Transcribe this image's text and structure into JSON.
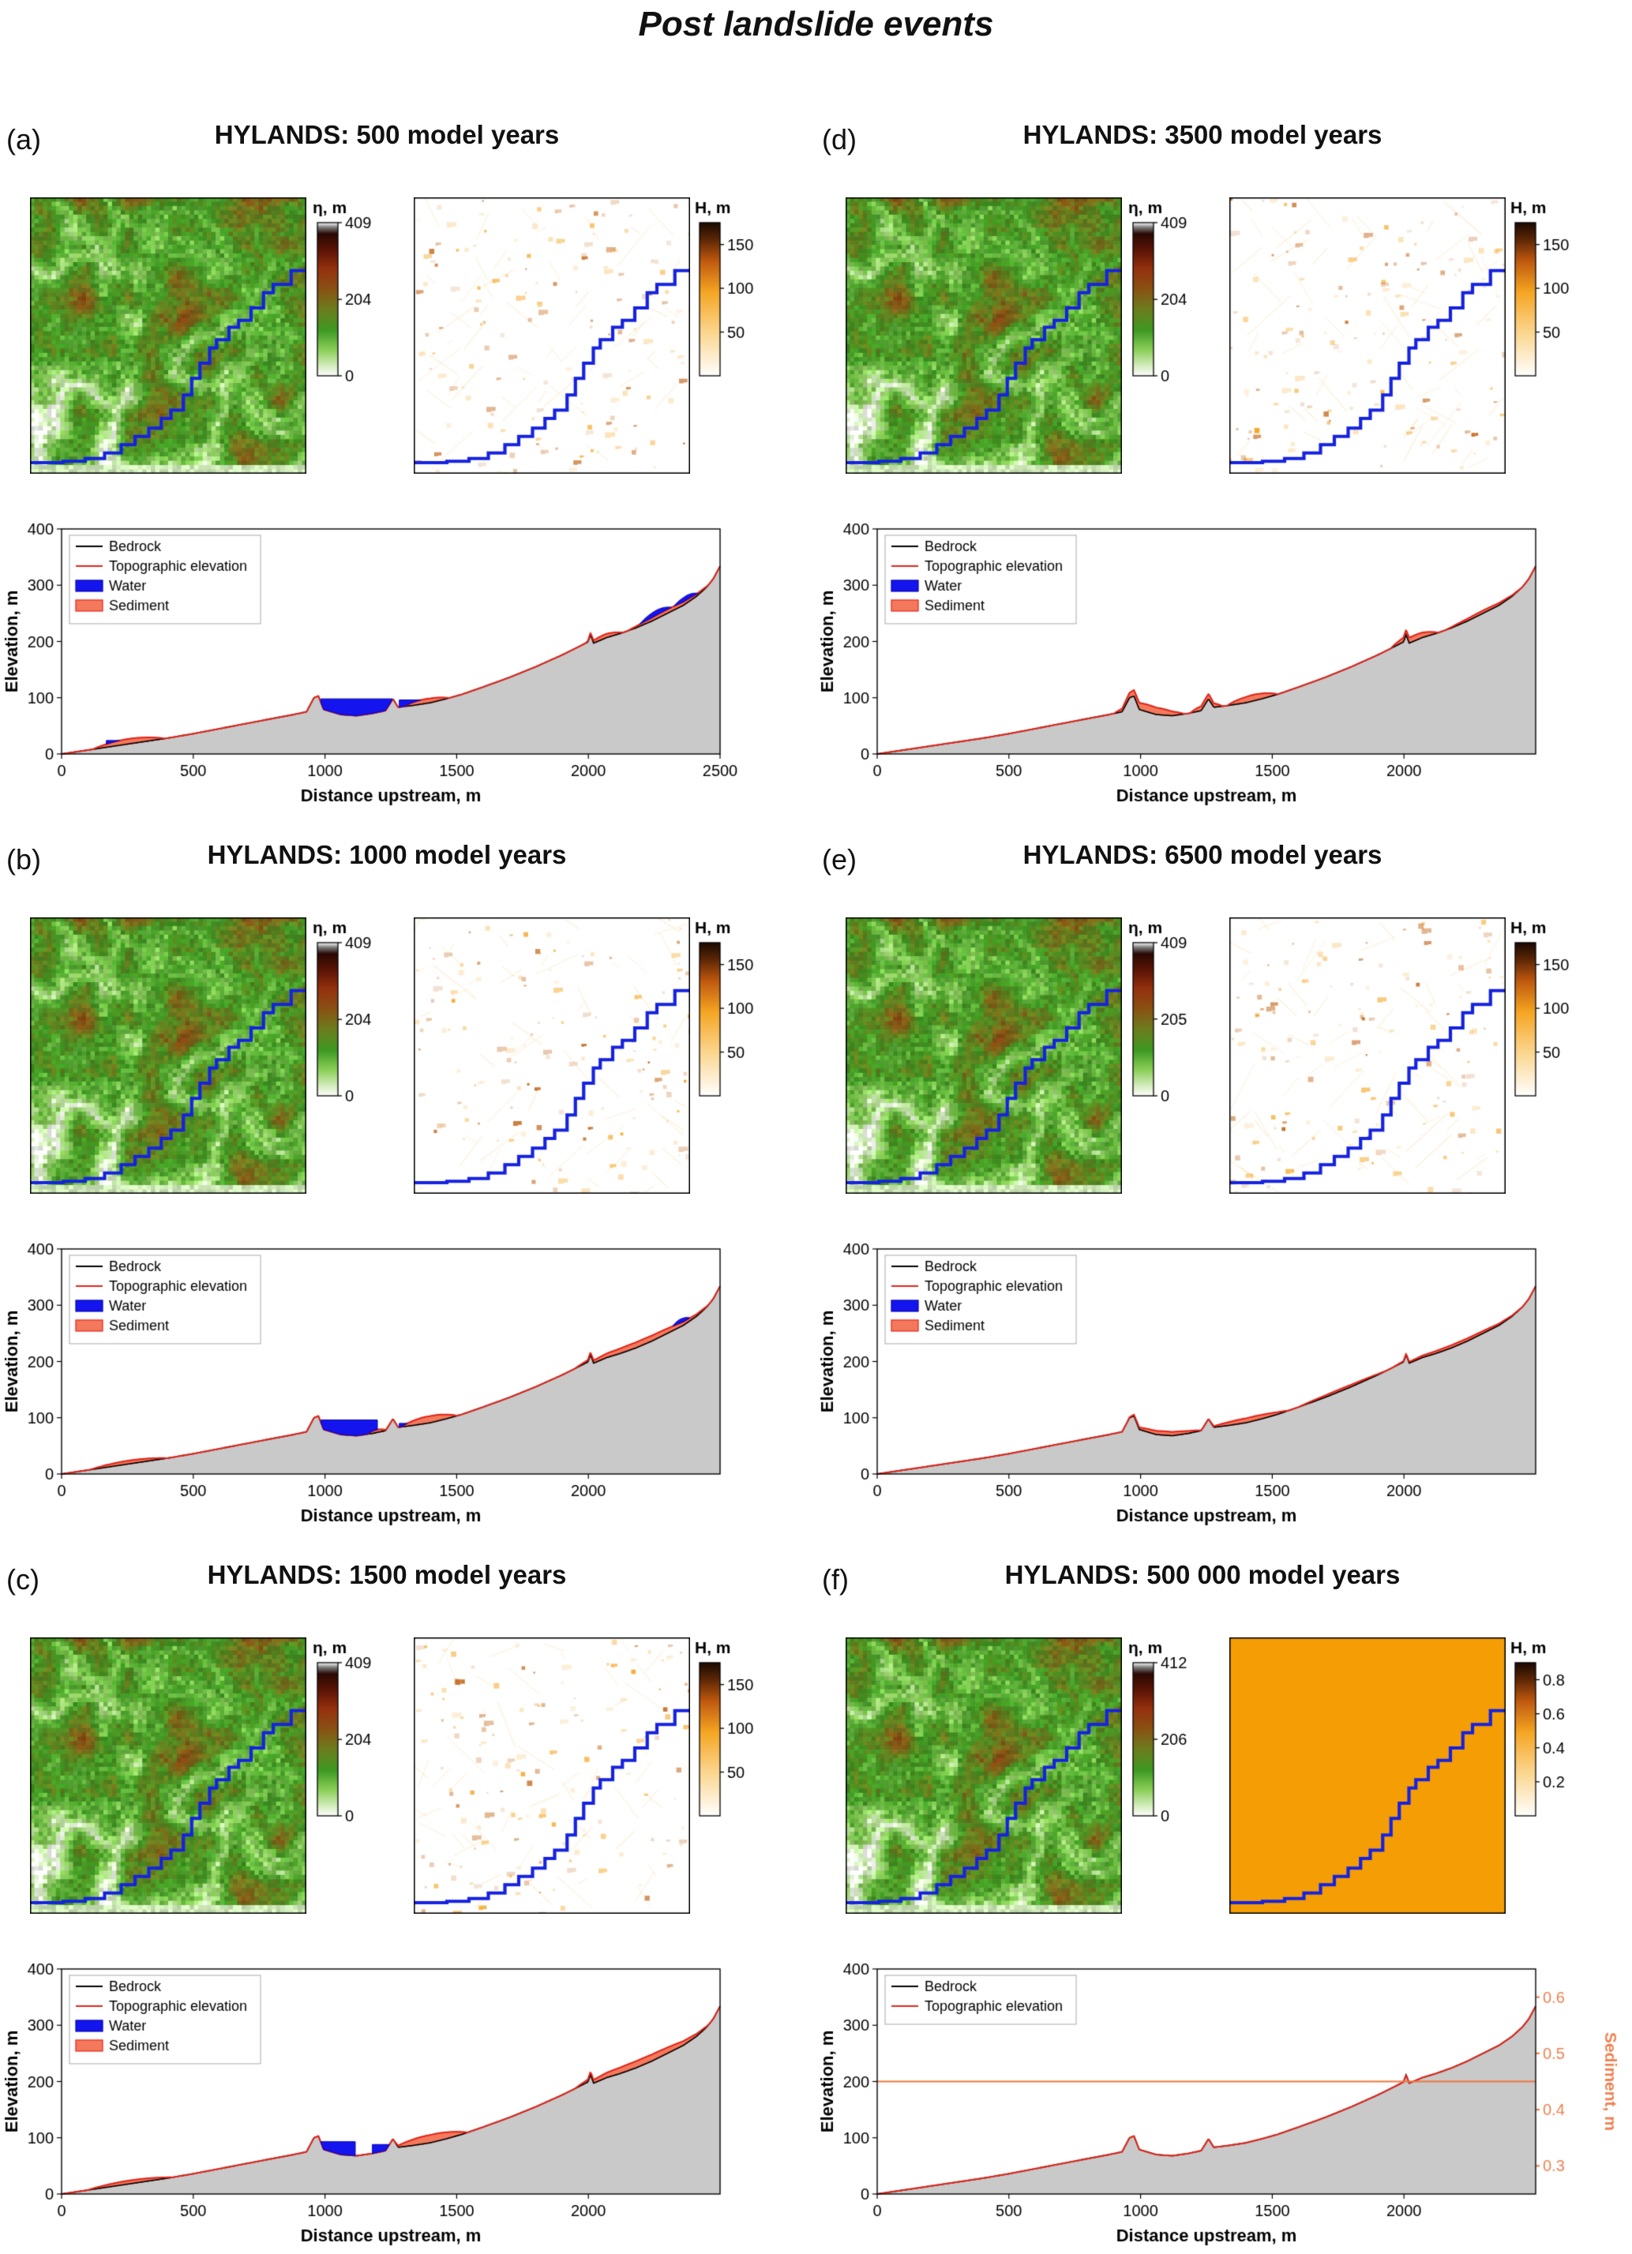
{
  "figure": {
    "title": "Post landslide events"
  },
  "colors": {
    "water": "#1414ee",
    "water_edge": "#0000b0",
    "sediment": "#f4795c",
    "sediment_edge": "#e1251b",
    "topo_line": "#e1251b",
    "bedrock_line": "#000000",
    "bedrock_fill": "#c9c9c9",
    "river": "#1522e0",
    "hmap_orange": "#f59d05",
    "right_axis_orange": "#f08050",
    "sediment_line_f": "#f0763c"
  },
  "panels": [
    {
      "label": "(a)",
      "title": "HYLANDS: 500 model years",
      "eta_colorbar": {
        "label": "η, m",
        "ticks": [
          409,
          204,
          0
        ],
        "vmax": 409
      },
      "h_colorbar": {
        "label": "H, m",
        "ticks": [
          150,
          100,
          50
        ],
        "vmax": 175
      },
      "profile": {
        "xlabel": "Distance upstream, m",
        "ylabel": "Elevation, m",
        "yticks": [
          0,
          100,
          200,
          300,
          400
        ],
        "xticks": [
          0,
          500,
          1000,
          1500,
          2000,
          2500
        ],
        "legend": [
          "Bedrock",
          "Topographic elevation",
          "Water",
          "Sediment"
        ]
      }
    },
    {
      "label": "(b)",
      "title": "HYLANDS: 1000 model years",
      "eta_colorbar": {
        "label": "η, m",
        "ticks": [
          409,
          204,
          0
        ],
        "vmax": 409
      },
      "h_colorbar": {
        "label": "H, m",
        "ticks": [
          150,
          100,
          50
        ],
        "vmax": 175
      },
      "profile": {
        "xlabel": "Distance upstream, m",
        "ylabel": "Elevation, m",
        "yticks": [
          0,
          100,
          200,
          300,
          400
        ],
        "xticks": [
          0,
          500,
          1000,
          1500,
          2000
        ],
        "legend": [
          "Bedrock",
          "Topographic elevation",
          "Water",
          "Sediment"
        ]
      }
    },
    {
      "label": "(c)",
      "title": "HYLANDS: 1500 model years",
      "eta_colorbar": {
        "label": "η, m",
        "ticks": [
          409,
          204,
          0
        ],
        "vmax": 409
      },
      "h_colorbar": {
        "label": "H, m",
        "ticks": [
          150,
          100,
          50
        ],
        "vmax": 175
      },
      "profile": {
        "xlabel": "Distance upstream, m",
        "ylabel": "Elevation, m",
        "yticks": [
          0,
          100,
          200,
          300,
          400
        ],
        "xticks": [
          0,
          500,
          1000,
          1500,
          2000
        ],
        "legend": [
          "Bedrock",
          "Topographic elevation",
          "Water",
          "Sediment"
        ]
      }
    },
    {
      "label": "(d)",
      "title": "HYLANDS: 3500 model years",
      "eta_colorbar": {
        "label": "η, m",
        "ticks": [
          409,
          204,
          0
        ],
        "vmax": 409
      },
      "h_colorbar": {
        "label": "H, m",
        "ticks": [
          150,
          100,
          50
        ],
        "vmax": 175
      },
      "profile": {
        "xlabel": "Distance upstream, m",
        "ylabel": "Elevation, m",
        "yticks": [
          0,
          100,
          200,
          300,
          400
        ],
        "xticks": [
          0,
          500,
          1000,
          1500,
          2000
        ],
        "legend": [
          "Bedrock",
          "Topographic elevation",
          "Water",
          "Sediment"
        ]
      }
    },
    {
      "label": "(e)",
      "title": "HYLANDS: 6500 model years",
      "eta_colorbar": {
        "label": "η, m",
        "ticks": [
          409,
          205,
          0
        ],
        "vmax": 409
      },
      "h_colorbar": {
        "label": "H, m",
        "ticks": [
          150,
          100,
          50
        ],
        "vmax": 175
      },
      "profile": {
        "xlabel": "Distance upstream, m",
        "ylabel": "Elevation, m",
        "yticks": [
          0,
          100,
          200,
          300,
          400
        ],
        "xticks": [
          0,
          500,
          1000,
          1500,
          2000
        ],
        "legend": [
          "Bedrock",
          "Topographic elevation",
          "Water",
          "Sediment"
        ]
      }
    },
    {
      "label": "(f)",
      "title": "HYLANDS: 500 000 model years",
      "eta_colorbar": {
        "label": "η, m",
        "ticks": [
          412,
          206,
          0
        ],
        "vmax": 412
      },
      "h_colorbar": {
        "label": "H, m",
        "ticks": [
          0.8,
          0.6,
          0.4,
          0.2
        ],
        "vmax": 0.9
      },
      "profile": {
        "xlabel": "Distance upstream, m",
        "ylabel": "Elevation, m",
        "yticks": [
          0,
          100,
          200,
          300,
          400
        ],
        "xticks": [
          0,
          500,
          1000,
          1500,
          2000
        ],
        "legend": [
          "Bedrock",
          "Topographic elevation"
        ],
        "right_axis": {
          "label": "Sediment, m",
          "ticks": [
            0.6,
            0.5,
            0.4,
            0.3
          ]
        }
      }
    }
  ],
  "chart_data": {
    "type": "multi-panel-profiles",
    "x_domain": [
      0,
      2500
    ],
    "y_domain": [
      0,
      400
    ],
    "bedrock_profile": [
      [
        0,
        0
      ],
      [
        100,
        7
      ],
      [
        200,
        14
      ],
      [
        300,
        21
      ],
      [
        400,
        28
      ],
      [
        500,
        36
      ],
      [
        600,
        45
      ],
      [
        700,
        54
      ],
      [
        800,
        63
      ],
      [
        880,
        70
      ],
      [
        930,
        75
      ],
      [
        958,
        100
      ],
      [
        975,
        103
      ],
      [
        995,
        79
      ],
      [
        1060,
        70
      ],
      [
        1120,
        68
      ],
      [
        1180,
        72
      ],
      [
        1230,
        77
      ],
      [
        1258,
        98
      ],
      [
        1278,
        83
      ],
      [
        1330,
        86
      ],
      [
        1400,
        91
      ],
      [
        1460,
        98
      ],
      [
        1520,
        106
      ],
      [
        1600,
        119
      ],
      [
        1700,
        136
      ],
      [
        1800,
        155
      ],
      [
        1900,
        176
      ],
      [
        1960,
        190
      ],
      [
        1998,
        199
      ],
      [
        2008,
        212
      ],
      [
        2020,
        197
      ],
      [
        2070,
        207
      ],
      [
        2120,
        214
      ],
      [
        2180,
        224
      ],
      [
        2240,
        236
      ],
      [
        2300,
        250
      ],
      [
        2360,
        264
      ],
      [
        2410,
        280
      ],
      [
        2450,
        297
      ],
      [
        2475,
        312
      ],
      [
        2500,
        334
      ]
    ],
    "panels": [
      {
        "id": "a",
        "water": [
          {
            "x0": 170,
            "x1": 330,
            "level": 24
          },
          {
            "x0": 985,
            "x1": 1256,
            "level": 98
          },
          {
            "x0": 1282,
            "x1": 1455,
            "level": 96
          },
          {
            "x0": 2195,
            "x1": 2315,
            "t": 9
          },
          {
            "x0": 2325,
            "x1": 2415,
            "t": 8
          }
        ],
        "sediment": [
          {
            "x0": 120,
            "x1": 390,
            "t": 9
          },
          {
            "x0": 1300,
            "x1": 1470,
            "t": 8
          },
          {
            "x0": 1990,
            "x1": 2130,
            "t": 7
          },
          {
            "x0": 2150,
            "x1": 2460,
            "t": 7
          }
        ]
      },
      {
        "id": "b",
        "water": [
          {
            "x0": 985,
            "x1": 1200,
            "level": 96
          },
          {
            "x0": 1282,
            "x1": 1385,
            "level": 90
          },
          {
            "x0": 2320,
            "x1": 2385,
            "t": 7
          }
        ],
        "sediment": [
          {
            "x0": 110,
            "x1": 400,
            "t": 6
          },
          {
            "x0": 1160,
            "x1": 1235,
            "t": 5
          },
          {
            "x0": 1290,
            "x1": 1500,
            "t": 12
          },
          {
            "x0": 1950,
            "x1": 2460,
            "t": 10
          }
        ]
      },
      {
        "id": "c",
        "water": [
          {
            "x0": 985,
            "x1": 1115,
            "level": 93
          },
          {
            "x0": 1180,
            "x1": 1250,
            "level": 88
          }
        ],
        "sediment": [
          {
            "x0": 100,
            "x1": 420,
            "t": 6
          },
          {
            "x0": 1265,
            "x1": 1540,
            "t": 14
          },
          {
            "x0": 1950,
            "x1": 2460,
            "t": 12
          }
        ]
      },
      {
        "id": "d",
        "water": [],
        "sediment": [
          {
            "x0": 900,
            "x1": 1165,
            "t": 13
          },
          {
            "x0": 1190,
            "x1": 1310,
            "t": 9
          },
          {
            "x0": 1330,
            "x1": 1520,
            "t": 11
          },
          {
            "x0": 1950,
            "x1": 2130,
            "t": 10
          },
          {
            "x0": 2160,
            "x1": 2440,
            "t": 5
          }
        ]
      },
      {
        "id": "e",
        "water": [],
        "sediment": [
          {
            "x0": 950,
            "x1": 1235,
            "t": 7
          },
          {
            "x0": 1262,
            "x1": 1560,
            "t": 8
          },
          {
            "x0": 1600,
            "x1": 1930,
            "t": 4
          },
          {
            "x0": 1960,
            "x1": 2450,
            "t": 5
          }
        ]
      },
      {
        "id": "f",
        "water": [],
        "sediment": [],
        "sediment_line": {
          "value": 0.45,
          "right_min": 0.25,
          "right_max": 0.65
        }
      }
    ],
    "river_path": [
      [
        1.0,
        0.265
      ],
      [
        0.945,
        0.265
      ],
      [
        0.945,
        0.315
      ],
      [
        0.88,
        0.315
      ],
      [
        0.88,
        0.345
      ],
      [
        0.845,
        0.345
      ],
      [
        0.845,
        0.4
      ],
      [
        0.8,
        0.4
      ],
      [
        0.8,
        0.445
      ],
      [
        0.755,
        0.445
      ],
      [
        0.755,
        0.47
      ],
      [
        0.72,
        0.47
      ],
      [
        0.72,
        0.515
      ],
      [
        0.675,
        0.515
      ],
      [
        0.675,
        0.545
      ],
      [
        0.65,
        0.545
      ],
      [
        0.65,
        0.6
      ],
      [
        0.615,
        0.6
      ],
      [
        0.615,
        0.655
      ],
      [
        0.585,
        0.655
      ],
      [
        0.585,
        0.715
      ],
      [
        0.555,
        0.715
      ],
      [
        0.555,
        0.77
      ],
      [
        0.51,
        0.77
      ],
      [
        0.51,
        0.8
      ],
      [
        0.475,
        0.8
      ],
      [
        0.475,
        0.835
      ],
      [
        0.43,
        0.835
      ],
      [
        0.43,
        0.865
      ],
      [
        0.38,
        0.865
      ],
      [
        0.38,
        0.895
      ],
      [
        0.33,
        0.895
      ],
      [
        0.33,
        0.925
      ],
      [
        0.27,
        0.925
      ],
      [
        0.27,
        0.945
      ],
      [
        0.2,
        0.945
      ],
      [
        0.2,
        0.955
      ],
      [
        0.12,
        0.955
      ],
      [
        0.12,
        0.96
      ],
      [
        0.0,
        0.96
      ]
    ],
    "colormaps": {
      "eta": [
        [
          0,
          "#ffffff"
        ],
        [
          0.05,
          "#dff2cf"
        ],
        [
          0.17,
          "#8cd05a"
        ],
        [
          0.3,
          "#3f9a23"
        ],
        [
          0.44,
          "#6f7c1e"
        ],
        [
          0.57,
          "#8a5214"
        ],
        [
          0.7,
          "#96320f"
        ],
        [
          0.82,
          "#5e1507"
        ],
        [
          0.93,
          "#2a0a04"
        ],
        [
          0.97,
          "#777777"
        ],
        [
          1,
          "#f2f2f2"
        ]
      ],
      "H": [
        [
          0,
          "#ffffff"
        ],
        [
          0.3,
          "#fbd489"
        ],
        [
          0.55,
          "#f5a623"
        ],
        [
          0.75,
          "#c05a10"
        ],
        [
          0.9,
          "#572505"
        ],
        [
          1,
          "#1c0b02"
        ]
      ]
    }
  }
}
